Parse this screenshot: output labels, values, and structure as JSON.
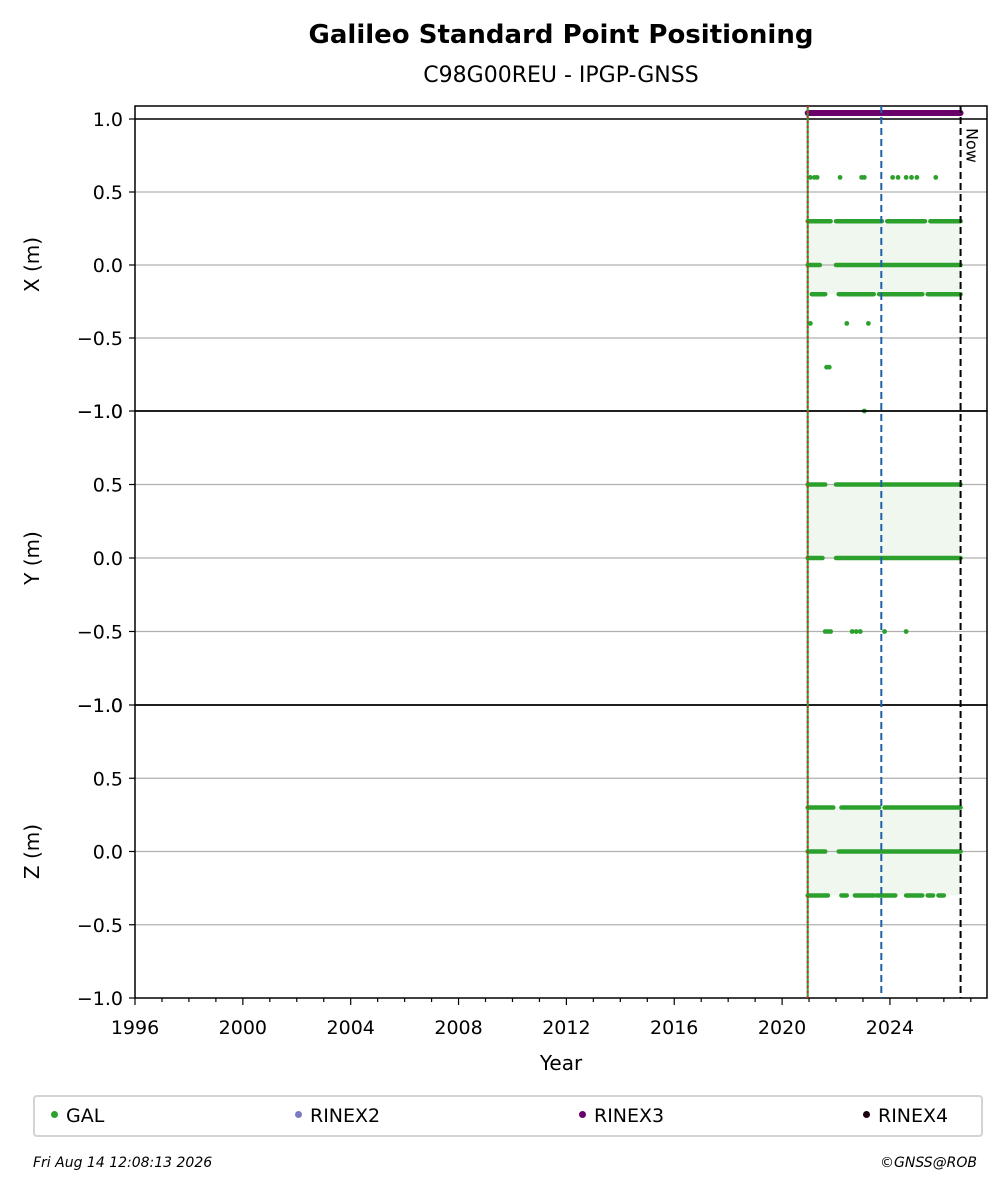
{
  "chart_data": {
    "type": "scatter",
    "title": "Galileo Standard Point Positioning",
    "subtitle": "C98G00REU - IPGP-GNSS",
    "xlabel": "Year",
    "xlim": [
      1996,
      2027.6
    ],
    "x_ticks": [
      "1996",
      "2000",
      "2004",
      "2008",
      "2012",
      "2016",
      "2020",
      "2024"
    ],
    "x_tick_values": [
      1996,
      2000,
      2004,
      2008,
      2012,
      2016,
      2020,
      2024
    ],
    "y_tick_values": [
      1.0,
      0.5,
      0.0,
      -0.5,
      -1.0
    ],
    "y_tick_labels": [
      "1.0",
      "0.5",
      "0.0",
      "−0.5",
      "−1.0"
    ],
    "grid": true,
    "vertical_lines": [
      {
        "x": 2020.95,
        "color": "#2ca02c",
        "style": "solid"
      },
      {
        "x": 2020.95,
        "color": "#d62728",
        "style": "dotted"
      },
      {
        "x": 2023.68,
        "color": "#1f5fa8",
        "style": "dashed"
      },
      {
        "x": 2026.62,
        "color": "#000000",
        "style": "dashed",
        "label": "Now"
      }
    ],
    "rinex_bar": {
      "name": "RINEX3",
      "start": 2020.95,
      "end": 2026.62,
      "y": 1.04,
      "color": "#6a006a"
    },
    "panels": [
      {
        "ylabel": "X (m)",
        "ylim": [
          -1.0,
          1.0
        ],
        "series": [
          {
            "name": "GAL",
            "bands": [
              {
                "y": 0.3,
                "segments": [
                  [
                    2020.95,
                    2021.8
                  ],
                  [
                    2022.0,
                    2023.7
                  ],
                  [
                    2023.9,
                    2025.3
                  ],
                  [
                    2025.5,
                    2026.62
                  ]
                ]
              },
              {
                "y": 0.0,
                "segments": [
                  [
                    2020.95,
                    2021.4
                  ],
                  [
                    2022.0,
                    2026.62
                  ]
                ]
              },
              {
                "y": -0.2,
                "segments": [
                  [
                    2021.1,
                    2021.6
                  ],
                  [
                    2022.1,
                    2023.4
                  ],
                  [
                    2023.6,
                    2025.2
                  ],
                  [
                    2025.4,
                    2026.62
                  ]
                ]
              }
            ]
          },
          {
            "name": "GAL",
            "points": [
              [
                2021.05,
                0.6
              ],
              [
                2021.2,
                0.6
              ],
              [
                2021.3,
                0.6
              ],
              [
                2022.15,
                0.6
              ],
              [
                2022.95,
                0.6
              ],
              [
                2023.05,
                0.6
              ],
              [
                2024.1,
                0.6
              ],
              [
                2024.3,
                0.6
              ],
              [
                2024.6,
                0.6
              ],
              [
                2024.8,
                0.6
              ],
              [
                2025.0,
                0.6
              ],
              [
                2025.7,
                0.6
              ],
              [
                2021.05,
                -0.4
              ],
              [
                2022.4,
                -0.4
              ],
              [
                2023.2,
                -0.4
              ],
              [
                2021.65,
                -0.7
              ],
              [
                2021.75,
                -0.7
              ],
              [
                2023.05,
                -1.0
              ]
            ]
          }
        ]
      },
      {
        "ylabel": "Y (m)",
        "ylim": [
          -1.0,
          1.0
        ],
        "series": [
          {
            "name": "GAL",
            "bands": [
              {
                "y": 0.5,
                "segments": [
                  [
                    2020.95,
                    2021.6
                  ],
                  [
                    2022.0,
                    2026.62
                  ]
                ]
              },
              {
                "y": 0.0,
                "segments": [
                  [
                    2020.95,
                    2021.5
                  ],
                  [
                    2022.0,
                    2026.62
                  ]
                ]
              }
            ]
          },
          {
            "name": "GAL",
            "points": [
              [
                2021.6,
                -0.5
              ],
              [
                2021.7,
                -0.5
              ],
              [
                2021.8,
                -0.5
              ],
              [
                2022.6,
                -0.5
              ],
              [
                2022.75,
                -0.5
              ],
              [
                2022.9,
                -0.5
              ],
              [
                2023.8,
                -0.5
              ],
              [
                2024.6,
                -0.5
              ]
            ]
          }
        ]
      },
      {
        "ylabel": "Z (m)",
        "ylim": [
          -1.0,
          1.0
        ],
        "series": [
          {
            "name": "GAL",
            "bands": [
              {
                "y": 0.3,
                "segments": [
                  [
                    2020.95,
                    2021.9
                  ],
                  [
                    2022.2,
                    2023.6
                  ],
                  [
                    2023.8,
                    2026.62
                  ]
                ]
              },
              {
                "y": 0.0,
                "segments": [
                  [
                    2020.95,
                    2021.6
                  ],
                  [
                    2022.1,
                    2026.62
                  ]
                ]
              },
              {
                "y": -0.3,
                "segments": [
                  [
                    2020.95,
                    2021.7
                  ],
                  [
                    2022.2,
                    2022.4
                  ],
                  [
                    2022.7,
                    2023.4
                  ],
                  [
                    2023.5,
                    2024.2
                  ],
                  [
                    2024.6,
                    2025.2
                  ],
                  [
                    2025.4,
                    2025.6
                  ],
                  [
                    2025.8,
                    2026.0
                  ]
                ]
              }
            ]
          }
        ]
      }
    ]
  },
  "legend": {
    "items": [
      {
        "label": "GAL",
        "color": "#2ca02c"
      },
      {
        "label": "RINEX2",
        "color": "#7b7bc4"
      },
      {
        "label": "RINEX3",
        "color": "#6a006a"
      },
      {
        "label": "RINEX4",
        "color": "#1a0010"
      }
    ]
  },
  "footer": {
    "timestamp": "Fri Aug 14 12:08:13 2026",
    "copyright": "©GNSS@ROB"
  },
  "colors": {
    "gal": "#2ca02c",
    "gal_fill": "#e8f3e8",
    "grid": "#b0b0b0",
    "axis": "#000000"
  }
}
